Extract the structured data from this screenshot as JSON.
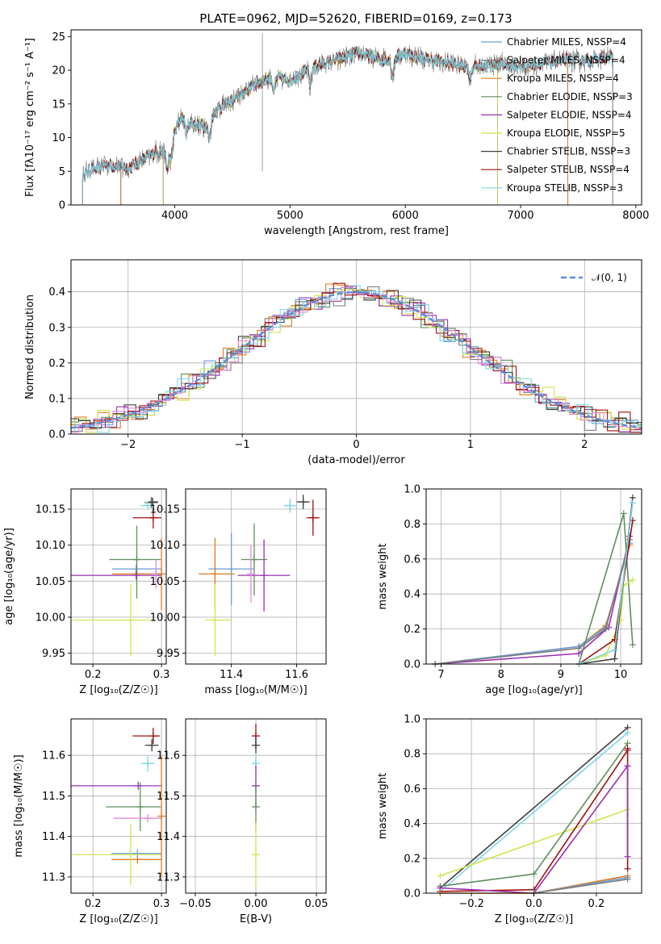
{
  "figure": {
    "title": "PLATE=0962, MJD=52620, FIBERID=0169, z=0.173"
  },
  "colors": {
    "Chabrier MILES": "#6d9ed6",
    "Salpeter MILES": "#7a7a7a",
    "Kroupa MILES": "#e07b20",
    "Chabrier ELODIE": "#5e8f5e",
    "Salpeter ELODIE": "#9930b0",
    "Kroupa ELODIE": "#cfe650",
    "Chabrier STELIB": "#404040",
    "Salpeter STELIB": "#a01010",
    "Kroupa STELIB": "#7fd6e6",
    "pink": "#e58ad8",
    "normal": "#5b8edc"
  },
  "chart_data": [
    {
      "id": "spectrum",
      "type": "line",
      "title": "PLATE=0962, MJD=52620, FIBERID=0169, z=0.173",
      "xlabel": "wavelength [Angstrom, rest frame]",
      "ylabel": "Flux [fλ10⁻¹⁷ erg cm⁻² s⁻¹ A⁻¹]",
      "xlim": [
        3100,
        8050
      ],
      "ylim": [
        0,
        26
      ],
      "xticks": [
        4000,
        5000,
        6000,
        7000,
        8000
      ],
      "yticks": [
        0,
        5,
        10,
        15,
        20,
        25
      ],
      "grid": false,
      "legend": "top-right",
      "legend_entries": [
        "Chabrier MILES, NSSP=4",
        "Salpeter MILES, NSSP=4",
        "Kroupa MILES, NSSP=4",
        "Chabrier ELODIE, NSSP=3",
        "Salpeter ELODIE, NSSP=4",
        "Kroupa ELODIE, NSSP=5",
        "Chabrier STELIB, NSSP=3",
        "Salpeter STELIB, NSSP=4",
        "Kroupa STELIB, NSSP=3"
      ],
      "continuum": {
        "x": [
          3200,
          3400,
          3600,
          3800,
          3950,
          4050,
          4250,
          4350,
          4500,
          4700,
          4850,
          5000,
          5200,
          5400,
          5600,
          5800,
          6000,
          6200,
          6400,
          6600,
          6800,
          7000,
          7200,
          7400,
          7600,
          7800
        ],
        "y": [
          4.5,
          6.0,
          5.5,
          7.5,
          8.5,
          13.0,
          11.5,
          14.0,
          15.5,
          18.0,
          19.0,
          18.5,
          20.5,
          21.5,
          22.5,
          21.5,
          22.5,
          21.5,
          21.0,
          20.5,
          21.0,
          20.5,
          21.0,
          21.5,
          21.5,
          22.0
        ]
      },
      "model_ranges": [
        {
          "model": "Chabrier MILES",
          "x": [
            3530,
            7410
          ]
        },
        {
          "model": "Salpeter MILES",
          "x": [
            3530,
            7410
          ]
        },
        {
          "model": "Kroupa MILES",
          "x": [
            3530,
            7410
          ]
        },
        {
          "model": "Chabrier ELODIE",
          "x": [
            3900,
            6800
          ]
        },
        {
          "model": "Salpeter ELODIE",
          "x": [
            3900,
            6800
          ]
        },
        {
          "model": "Kroupa ELODIE",
          "x": [
            3900,
            6800
          ]
        },
        {
          "model": "Chabrier STELIB",
          "x": [
            3200,
            7800
          ]
        },
        {
          "model": "Salpeter STELIB",
          "x": [
            3200,
            7800
          ]
        },
        {
          "model": "Kroupa STELIB",
          "x": [
            3200,
            7800
          ]
        }
      ]
    },
    {
      "id": "residuals",
      "type": "bar",
      "xlabel": "(data-model)/error",
      "ylabel": "Normed distribution",
      "xlim": [
        -2.5,
        2.5
      ],
      "ylim": [
        0,
        0.49
      ],
      "xticks": [
        -2,
        -1,
        0,
        1,
        2
      ],
      "yticks": [
        0.0,
        0.1,
        0.2,
        0.3,
        0.4
      ],
      "grid": true,
      "legend": "top-right",
      "legend_entries": [
        "𝒩(0, 1)"
      ],
      "bin_width": 0.1
    },
    {
      "id": "age-vs-Z",
      "type": "scatter",
      "xlabel": "Z [log₁₀(Z/Z☉)]",
      "ylabel": "age  [log₁₀(age/yr)]",
      "xlim": [
        0.168,
        0.307
      ],
      "ylim": [
        9.935,
        10.178
      ],
      "xticks": [
        0.2,
        0.3
      ],
      "yticks": [
        9.95,
        10.0,
        10.05,
        10.1,
        10.15
      ],
      "grid": true,
      "points": [
        {
          "model": "Chabrier MILES",
          "x": 0.263,
          "y": 10.067,
          "xerr": [
            0.035,
            0.037
          ],
          "yerr": [
            0.0,
            0.0
          ]
        },
        {
          "model": "Salpeter MILES",
          "x": 0.285,
          "y": 10.159,
          "xerr": [
            0.01,
            0.01
          ],
          "yerr": [
            0.008,
            0.008
          ]
        },
        {
          "model": "Kroupa MILES",
          "x": 0.263,
          "y": 10.06,
          "xerr": [
            0.035,
            0.037
          ],
          "yerr": [
            0.0,
            0.0
          ]
        },
        {
          "model": "Chabrier ELODIE",
          "x": 0.264,
          "y": 10.08,
          "xerr": [
            0.04,
            0.035
          ],
          "yerr": [
            0.054,
            0.047
          ]
        },
        {
          "model": "Salpeter ELODIE",
          "x": 0.263,
          "y": 10.058,
          "xerr": [
            0.1,
            0.037
          ],
          "yerr": [
            0.0,
            0.0
          ]
        },
        {
          "model": "Kroupa ELODIE",
          "x": 0.255,
          "y": 9.996,
          "xerr": [
            0.085,
            0.034
          ],
          "yerr": [
            0.05,
            0.05
          ]
        },
        {
          "model": "Chabrier STELIB",
          "x": 0.287,
          "y": 10.16,
          "xerr": [
            0.008,
            0.008
          ],
          "yerr": [
            0.006,
            0.006
          ]
        },
        {
          "model": "Salpeter STELIB",
          "x": 0.288,
          "y": 10.138,
          "xerr": [
            0.03,
            0.012
          ],
          "yerr": [
            0.015,
            0.015
          ]
        },
        {
          "model": "Kroupa STELIB",
          "x": 0.28,
          "y": 10.155,
          "xerr": [
            0.01,
            0.01
          ],
          "yerr": [
            0.005,
            0.005
          ]
        },
        {
          "model": "pink",
          "x": 0.292,
          "y": 10.06,
          "xerr": [
            0.0,
            0.008
          ],
          "yerr": [
            0.02,
            0.02
          ]
        },
        {
          "model": "Kroupa MILES",
          "x": 0.3,
          "y": 10.06,
          "xerr": [
            0.0,
            0.0
          ],
          "yerr": [
            0.05,
            0.05
          ]
        }
      ]
    },
    {
      "id": "age-vs-mass",
      "type": "scatter",
      "xlabel": "mass [log₁₀(M/M☉)]",
      "ylabel": "",
      "xlim": [
        11.26,
        11.69
      ],
      "ylim": [
        9.935,
        10.178
      ],
      "xticks": [
        11.4,
        11.6
      ],
      "yticks": [
        9.95,
        10.0,
        10.05,
        10.1,
        10.15
      ],
      "grid": true,
      "points": [
        {
          "model": "Chabrier MILES",
          "x": 11.4,
          "y": 10.067,
          "xerr": [
            0.07,
            0.07
          ],
          "yerr": [
            0.05,
            0.05
          ]
        },
        {
          "model": "Kroupa MILES",
          "x": 11.35,
          "y": 10.06,
          "xerr": [
            0.05,
            0.06
          ],
          "yerr": [
            0.05,
            0.05
          ]
        },
        {
          "model": "Chabrier ELODIE",
          "x": 11.47,
          "y": 10.08,
          "xerr": [
            0.04,
            0.04
          ],
          "yerr": [
            0.05,
            0.05
          ]
        },
        {
          "model": "Salpeter ELODIE",
          "x": 11.5,
          "y": 10.058,
          "xerr": [
            0.08,
            0.08
          ],
          "yerr": [
            0.05,
            0.05
          ]
        },
        {
          "model": "Kroupa ELODIE",
          "x": 11.35,
          "y": 9.996,
          "xerr": [
            0.03,
            0.05
          ],
          "yerr": [
            0.05,
            0.05
          ]
        },
        {
          "model": "pink",
          "x": 11.46,
          "y": 10.06,
          "xerr": [
            0.0,
            0.0
          ],
          "yerr": [
            0.04,
            0.04
          ]
        },
        {
          "model": "Salpeter STELIB",
          "x": 11.65,
          "y": 10.138,
          "xerr": [
            0.02,
            0.02
          ],
          "yerr": [
            0.025,
            0.025
          ]
        },
        {
          "model": "Chabrier STELIB",
          "x": 11.62,
          "y": 10.16,
          "xerr": [
            0.02,
            0.02
          ],
          "yerr": [
            0.01,
            0.01
          ]
        },
        {
          "model": "Kroupa STELIB",
          "x": 11.58,
          "y": 10.155,
          "xerr": [
            0.02,
            0.02
          ],
          "yerr": [
            0.01,
            0.01
          ]
        }
      ]
    },
    {
      "id": "weight-vs-age",
      "type": "line",
      "xlabel": "age  [log₁₀(age/yr)]",
      "ylabel": "mass weight",
      "xlim": [
        6.75,
        10.35
      ],
      "ylim": [
        0,
        1.0
      ],
      "xticks": [
        7,
        8,
        9,
        10
      ],
      "yticks": [
        0.0,
        0.2,
        0.4,
        0.6,
        0.8,
        1.0
      ],
      "grid": true,
      "series": [
        {
          "model": "Salpeter ELODIE",
          "x": [
            6.9,
            9.3,
            9.8,
            10.15
          ],
          "y": [
            0.0,
            0.06,
            0.21,
            0.73
          ]
        },
        {
          "model": "Kroupa MILES",
          "x": [
            6.9,
            9.3,
            9.75,
            10.15
          ],
          "y": [
            0.0,
            0.1,
            0.22,
            0.68
          ]
        },
        {
          "model": "Chabrier MILES",
          "x": [
            6.9,
            9.3,
            9.75,
            10.15
          ],
          "y": [
            0.0,
            0.1,
            0.21,
            0.69
          ]
        },
        {
          "model": "Salpeter MILES",
          "x": [
            6.9,
            9.3,
            9.75,
            10.15
          ],
          "y": [
            0.0,
            0.09,
            0.2,
            0.71
          ]
        },
        {
          "model": "Chabrier ELODIE",
          "x": [
            9.3,
            10.05,
            10.2
          ],
          "y": [
            0.0,
            0.86,
            0.11
          ]
        },
        {
          "model": "Kroupa ELODIE",
          "x": [
            9.3,
            9.75,
            10.0,
            10.05,
            10.2
          ],
          "y": [
            0.0,
            0.05,
            0.25,
            0.45,
            0.48
          ]
        },
        {
          "model": "Chabrier STELIB",
          "x": [
            9.3,
            9.9,
            10.2
          ],
          "y": [
            0.0,
            0.03,
            0.95
          ]
        },
        {
          "model": "Salpeter STELIB",
          "x": [
            9.3,
            9.9,
            10.2
          ],
          "y": [
            0.0,
            0.14,
            0.82
          ]
        },
        {
          "model": "Kroupa STELIB",
          "x": [
            9.3,
            9.9,
            10.2
          ],
          "y": [
            0.0,
            0.08,
            0.92
          ]
        }
      ]
    },
    {
      "id": "mass-vs-Z",
      "type": "scatter",
      "xlabel": "Z [log₁₀(Z/Z☉)]",
      "ylabel": "mass [log₁₀(M/M☉)]",
      "xlim": [
        0.168,
        0.307
      ],
      "ylim": [
        11.26,
        11.69
      ],
      "xticks": [
        0.2,
        0.3
      ],
      "yticks": [
        11.3,
        11.4,
        11.5,
        11.6
      ],
      "grid": true,
      "points": [
        {
          "model": "Kroupa MILES",
          "x": 0.265,
          "y": 11.343,
          "xerr": [
            0.038,
            0.035
          ],
          "yerr": [
            0.0,
            0.0
          ]
        },
        {
          "model": "Chabrier MILES",
          "x": 0.265,
          "y": 11.358,
          "xerr": [
            0.038,
            0.035
          ],
          "yerr": [
            0.0,
            0.0
          ]
        },
        {
          "model": "Kroupa ELODIE",
          "x": 0.255,
          "y": 11.355,
          "xerr": [
            0.085,
            0.045
          ],
          "yerr": [
            0.075,
            0.075
          ]
        },
        {
          "model": "Chabrier ELODIE",
          "x": 0.269,
          "y": 11.473,
          "xerr": [
            0.05,
            0.03
          ],
          "yerr": [
            0.06,
            0.06
          ]
        },
        {
          "model": "Salpeter ELODIE",
          "x": 0.266,
          "y": 11.525,
          "xerr": [
            0.1,
            0.035
          ],
          "yerr": [
            0.0,
            0.0
          ]
        },
        {
          "model": "pink",
          "x": 0.28,
          "y": 11.445,
          "xerr": [
            0.05,
            0.02
          ],
          "yerr": [
            0.0,
            0.0
          ]
        },
        {
          "model": "Kroupa STELIB",
          "x": 0.28,
          "y": 11.58,
          "xerr": [
            0.01,
            0.01
          ],
          "yerr": [
            0.02,
            0.02
          ]
        },
        {
          "model": "Chabrier STELIB",
          "x": 0.286,
          "y": 11.625,
          "xerr": [
            0.01,
            0.01
          ],
          "yerr": [
            0.015,
            0.015
          ]
        },
        {
          "model": "Salpeter STELIB",
          "x": 0.288,
          "y": 11.648,
          "xerr": [
            0.03,
            0.01
          ],
          "yerr": [
            0.02,
            0.02
          ]
        },
        {
          "model": "Kroupa MILES",
          "x": 0.3,
          "y": 11.45,
          "xerr": [
            0.0,
            0.0
          ],
          "yerr": [
            0.15,
            0.15
          ]
        }
      ]
    },
    {
      "id": "mass-vs-EBV",
      "type": "scatter",
      "xlabel": "E(B-V)",
      "ylabel": "",
      "xlim": [
        -0.058,
        0.058
      ],
      "ylim": [
        11.26,
        11.69
      ],
      "xticks": [
        -0.05,
        0.0,
        0.05
      ],
      "yticks": [
        11.3,
        11.4,
        11.5,
        11.6
      ],
      "grid": true,
      "points": [
        {
          "model": "Salpeter STELIB",
          "x": 0.0,
          "y": 11.648,
          "xerr": [
            0.0,
            0.0
          ],
          "yerr": [
            0.03,
            0.03
          ]
        },
        {
          "model": "Chabrier STELIB",
          "x": 0.0,
          "y": 11.625,
          "xerr": [
            0.0,
            0.0
          ],
          "yerr": [
            0.02,
            0.02
          ]
        },
        {
          "model": "Kroupa STELIB",
          "x": 0.0,
          "y": 11.58,
          "xerr": [
            0.0,
            0.0
          ],
          "yerr": [
            0.02,
            0.02
          ]
        },
        {
          "model": "Salpeter ELODIE",
          "x": 0.0,
          "y": 11.525,
          "xerr": [
            0.0,
            0.0
          ],
          "yerr": [
            0.05,
            0.05
          ]
        },
        {
          "model": "Chabrier ELODIE",
          "x": 0.0,
          "y": 11.473,
          "xerr": [
            0.0,
            0.0
          ],
          "yerr": [
            0.06,
            0.06
          ]
        },
        {
          "model": "Kroupa ELODIE",
          "x": 0.0,
          "y": 11.355,
          "xerr": [
            0.0,
            0.0
          ],
          "yerr": [
            0.08,
            0.08
          ]
        }
      ]
    },
    {
      "id": "weight-vs-Z",
      "type": "line",
      "xlabel": "Z [log₁₀(Z/Z☉)]",
      "ylabel": "mass weight",
      "xlim": [
        -0.345,
        0.345
      ],
      "ylim": [
        0,
        1.0
      ],
      "xticks": [
        -0.2,
        0.0,
        0.2
      ],
      "yticks": [
        0.0,
        0.2,
        0.4,
        0.6,
        0.8,
        1.0
      ],
      "grid": true,
      "series": [
        {
          "model": "Chabrier STELIB",
          "x": [
            -0.3,
            0.3
          ],
          "y": [
            0.03,
            0.95
          ]
        },
        {
          "model": "Kroupa STELIB",
          "x": [
            -0.3,
            0.3
          ],
          "y": [
            0.01,
            0.92
          ]
        },
        {
          "model": "Kroupa ELODIE",
          "x": [
            -0.3,
            0.3
          ],
          "y": [
            0.1,
            0.48
          ]
        },
        {
          "model": "Chabrier ELODIE",
          "x": [
            -0.3,
            0.0,
            0.3
          ],
          "y": [
            0.04,
            0.11,
            0.86
          ]
        },
        {
          "model": "Salpeter STELIB",
          "x": [
            -0.3,
            0.0,
            0.3
          ],
          "y": [
            0.01,
            0.02,
            0.82
          ]
        },
        {
          "model": "Salpeter ELODIE",
          "x": [
            -0.3,
            0.0,
            0.3
          ],
          "y": [
            0.03,
            0.0,
            0.73
          ]
        },
        {
          "model": "Kroupa MILES",
          "x": [
            -0.3,
            0.0,
            0.3
          ],
          "y": [
            0.0,
            0.0,
            0.1
          ]
        },
        {
          "model": "Chabrier MILES",
          "x": [
            0.0,
            0.3
          ],
          "y": [
            0.0,
            0.09
          ]
        },
        {
          "model": "Salpeter MILES",
          "x": [
            0.0,
            0.3
          ],
          "y": [
            0.0,
            0.08
          ]
        },
        {
          "model": "Salpeter STELIB",
          "x": [
            0.3,
            0.3
          ],
          "y": [
            0.14,
            0.83
          ]
        },
        {
          "model": "Salpeter ELODIE",
          "x": [
            0.3,
            0.3
          ],
          "y": [
            0.21,
            0.73
          ]
        }
      ]
    }
  ]
}
